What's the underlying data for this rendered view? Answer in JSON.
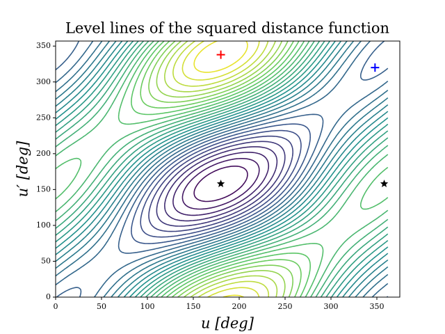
{
  "chart_data": {
    "type": "contour",
    "title": "Level lines of the squared distance function",
    "xlabel": "u [deg]",
    "ylabel": "u′ [deg]",
    "xlim": [
      0,
      375
    ],
    "ylim": [
      0,
      357
    ],
    "xticks": [
      0,
      50,
      100,
      150,
      200,
      250,
      300,
      350
    ],
    "yticks": [
      0,
      50,
      100,
      150,
      200,
      250,
      300,
      350
    ],
    "points": [
      {
        "x": 180,
        "y": 338,
        "marker": "plus",
        "color": "#ff0000"
      },
      {
        "x": 348,
        "y": 320,
        "marker": "plus",
        "color": "#0000ff"
      },
      {
        "x": 180,
        "y": 158,
        "marker": "star",
        "color": "#000000"
      },
      {
        "x": 358,
        "y": 158,
        "marker": "star",
        "color": "#000000"
      }
    ]
  }
}
